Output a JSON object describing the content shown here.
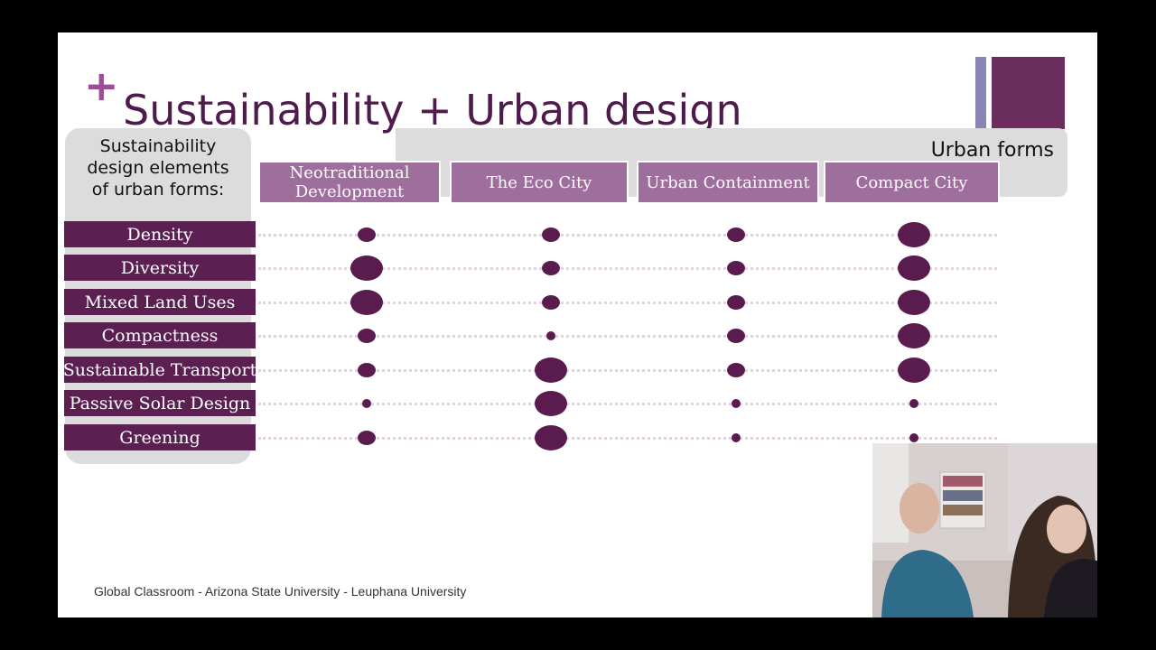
{
  "slide": {
    "title": "Sustainability + Urban design",
    "plus_symbol": "+",
    "left_header": [
      "Sustainability",
      "design elements",
      "of urban forms:"
    ],
    "forms_label": "Urban forms",
    "columns": [
      "Neotraditional Development",
      "The Eco City",
      "Urban Containment",
      "Compact City"
    ],
    "rows": [
      {
        "label": "Density",
        "ratings": [
          2,
          2,
          2,
          4
        ]
      },
      {
        "label": "Diversity",
        "ratings": [
          4,
          2,
          2,
          4
        ]
      },
      {
        "label": "Mixed Land Uses",
        "ratings": [
          4,
          2,
          2,
          4
        ]
      },
      {
        "label": "Compactness",
        "ratings": [
          2,
          1,
          2,
          4
        ]
      },
      {
        "label": "Sustainable Transport",
        "ratings": [
          2,
          4,
          2,
          4
        ]
      },
      {
        "label": "Passive Solar Design",
        "ratings": [
          1,
          4,
          1,
          1
        ]
      },
      {
        "label": "Greening",
        "ratings": [
          2,
          4,
          1,
          1
        ]
      }
    ],
    "footer": "Global Classroom - Arizona State University - Leuphana University"
  },
  "colors": {
    "title": "#4f1a4c",
    "row_label_bg": "#5b1f52",
    "column_header_bg": "#9e6e9c",
    "dot": "#5a1c4f",
    "dotted_line": "#e8cde4",
    "panel_gray": "#dcdcdc",
    "accent_plus": "#9b4f96"
  }
}
